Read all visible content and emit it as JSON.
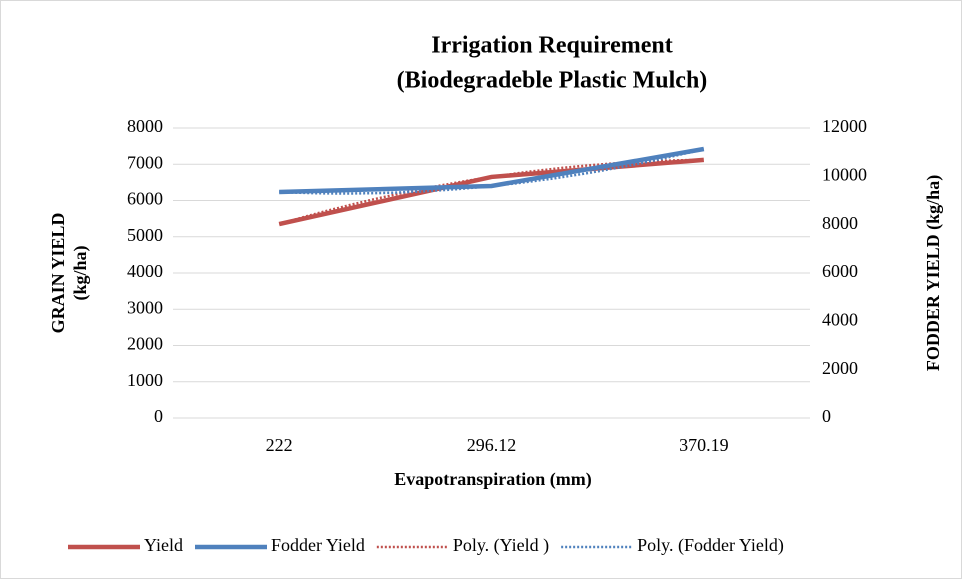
{
  "chart_data": {
    "type": "line",
    "title": [
      "Irrigation Requirement",
      "(Biodegradeble Plastic Mulch)"
    ],
    "xlabel": "Evapotranspiration (mm)",
    "ylabel": [
      "GRAIN YIELD",
      "(kg/ha)"
    ],
    "y2label": "FODDER YIELD (kg/ha)",
    "categories": [
      "222",
      "296.12",
      "370.19"
    ],
    "series": [
      {
        "name": "Yield",
        "color": "#c0504d",
        "values": [
          5350,
          6650,
          7120
        ],
        "trendline": {
          "name": "Poly. (Yield )",
          "type": "poly"
        }
      },
      {
        "name": "Fodder Yield",
        "color": "#4f81bd",
        "axis": "y2",
        "values": [
          9350,
          9600,
          11130
        ],
        "trendline": {
          "name": "Poly. (Fodder Yield)",
          "type": "poly"
        }
      }
    ],
    "ylim": [
      0,
      8000
    ],
    "yticks": [
      0,
      1000,
      2000,
      3000,
      4000,
      5000,
      6000,
      7000,
      8000
    ],
    "y2lim": [
      0,
      12000
    ],
    "y2ticks": [
      0,
      2000,
      4000,
      6000,
      8000,
      10000,
      12000
    ],
    "grid": true,
    "legend": "bottom"
  }
}
